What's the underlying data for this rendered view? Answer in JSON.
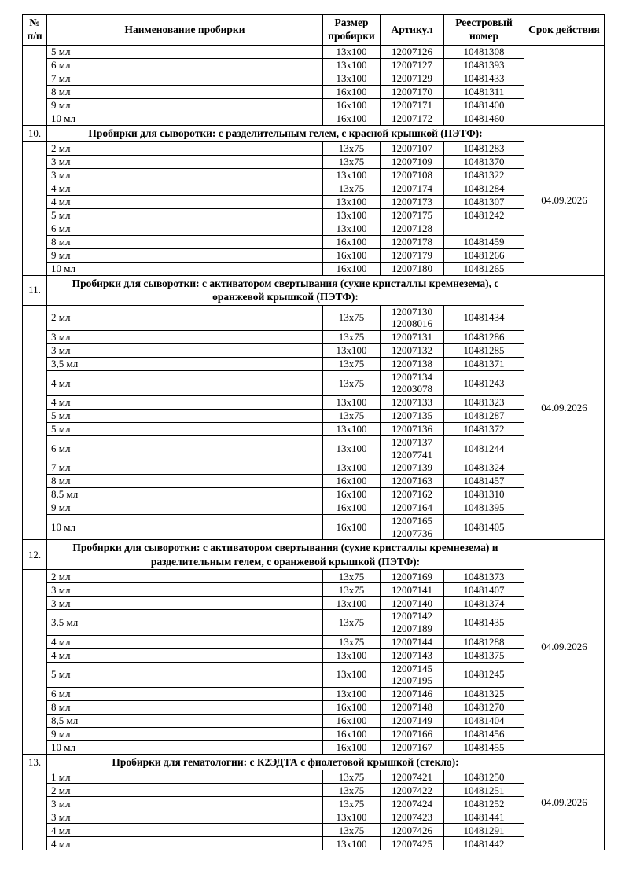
{
  "table": {
    "border_color": "#000000",
    "text_color": "#000000",
    "background_color": "#ffffff",
    "columns": [
      "№ п/п",
      "Наименование пробирки",
      "Размер пробирки",
      "Артикул",
      "Реестровый номер",
      "Срок действия"
    ],
    "sections": [
      {
        "number": "",
        "title": "",
        "validity": "",
        "rows": [
          [
            "5 мл",
            "13x100",
            "12007126",
            "10481308"
          ],
          [
            "6 мл",
            "13x100",
            "12007127",
            "10481393"
          ],
          [
            "7 мл",
            "13x100",
            "12007129",
            "10481433"
          ],
          [
            "8 мл",
            "16x100",
            "12007170",
            "10481311"
          ],
          [
            "9 мл",
            "16x100",
            "12007171",
            "10481400"
          ],
          [
            "10 мл",
            "16x100",
            "12007172",
            "10481460"
          ]
        ]
      },
      {
        "number": "10.",
        "title": "Пробирки для сыворотки: с разделительным гелем, с красной крышкой (ПЭТФ):",
        "validity": "04.09.2026",
        "rows": [
          [
            "2 мл",
            "13x75",
            "12007107",
            "10481283"
          ],
          [
            "3 мл",
            "13x75",
            "12007109",
            "10481370"
          ],
          [
            "3 мл",
            "13x100",
            "12007108",
            "10481322"
          ],
          [
            "4 мл",
            "13x75",
            "12007174",
            "10481284"
          ],
          [
            "4 мл",
            "13x100",
            "12007173",
            "10481307"
          ],
          [
            "5 мл",
            "13x100",
            "12007175",
            "10481242"
          ],
          [
            "6 мл",
            "13x100",
            "12007128",
            ""
          ],
          [
            "8 мл",
            "16x100",
            "12007178",
            "10481459"
          ],
          [
            "9 мл",
            "16x100",
            "12007179",
            "10481266"
          ],
          [
            "10 мл",
            "16x100",
            "12007180",
            "10481265"
          ]
        ]
      },
      {
        "number": "11.",
        "title": "Пробирки для сыворотки: с активатором свертывания (сухие кристаллы кремнезема), с оранжевой крышкой (ПЭТФ):",
        "validity": "04.09.2026",
        "rows": [
          [
            "2 мл",
            "13x75",
            "12007130\n12008016",
            "10481434"
          ],
          [
            "3 мл",
            "13x75",
            "12007131",
            "10481286"
          ],
          [
            "3 мл",
            "13x100",
            "12007132",
            "10481285"
          ],
          [
            "3,5 мл",
            "13x75",
            "12007138",
            "10481371"
          ],
          [
            "4 мл",
            "13x75",
            "12007134\n12003078",
            "10481243"
          ],
          [
            "4 мл",
            "13x100",
            "12007133",
            "10481323"
          ],
          [
            "5 мл",
            "13x75",
            "12007135",
            "10481287"
          ],
          [
            "5 мл",
            "13x100",
            "12007136",
            "10481372"
          ],
          [
            "6 мл",
            "13x100",
            "12007137\n12007741",
            "10481244"
          ],
          [
            "7 мл",
            "13x100",
            "12007139",
            "10481324"
          ],
          [
            "8 мл",
            "16x100",
            "12007163",
            "10481457"
          ],
          [
            "8,5 мл",
            "16x100",
            "12007162",
            "10481310"
          ],
          [
            "9 мл",
            "16x100",
            "12007164",
            "10481395"
          ],
          [
            "10 мл",
            "16x100",
            "12007165\n12007736",
            "10481405"
          ]
        ]
      },
      {
        "number": "12.",
        "title": "Пробирки для сыворотки: с активатором свертывания (сухие кристаллы кремнезема) и разделительным гелем, с оранжевой крышкой (ПЭТФ):",
        "validity": "04.09.2026",
        "rows": [
          [
            "2 мл",
            "13x75",
            "12007169",
            "10481373"
          ],
          [
            "3 мл",
            "13x75",
            "12007141",
            "10481407"
          ],
          [
            "3 мл",
            "13x100",
            "12007140",
            "10481374"
          ],
          [
            "3,5 мл",
            "13x75",
            "12007142\n12007189",
            "10481435"
          ],
          [
            "4 мл",
            "13x75",
            "12007144",
            "10481288"
          ],
          [
            "4 мл",
            "13x100",
            "12007143",
            "10481375"
          ],
          [
            "5 мл",
            "13x100",
            "12007145\n12007195",
            "10481245"
          ],
          [
            "6 мл",
            "13x100",
            "12007146",
            "10481325"
          ],
          [
            "8 мл",
            "16x100",
            "12007148",
            "10481270"
          ],
          [
            "8,5 мл",
            "16x100",
            "12007149",
            "10481404"
          ],
          [
            "9 мл",
            "16x100",
            "12007166",
            "10481456"
          ],
          [
            "10 мл",
            "16x100",
            "12007167",
            "10481455"
          ]
        ]
      },
      {
        "number": "13.",
        "title": "Пробирки для гематологии: с К2ЭДТА с фиолетовой крышкой (стекло):",
        "validity": "04.09.2026",
        "rows": [
          [
            "1 мл",
            "13x75",
            "12007421",
            "10481250"
          ],
          [
            "2 мл",
            "13x75",
            "12007422",
            "10481251"
          ],
          [
            "3 мл",
            "13x75",
            "12007424",
            "10481252"
          ],
          [
            "3 мл",
            "13x100",
            "12007423",
            "10481441"
          ],
          [
            "4 мл",
            "13x75",
            "12007426",
            "10481291"
          ],
          [
            "4 мл",
            "13x100",
            "12007425",
            "10481442"
          ]
        ]
      }
    ]
  }
}
